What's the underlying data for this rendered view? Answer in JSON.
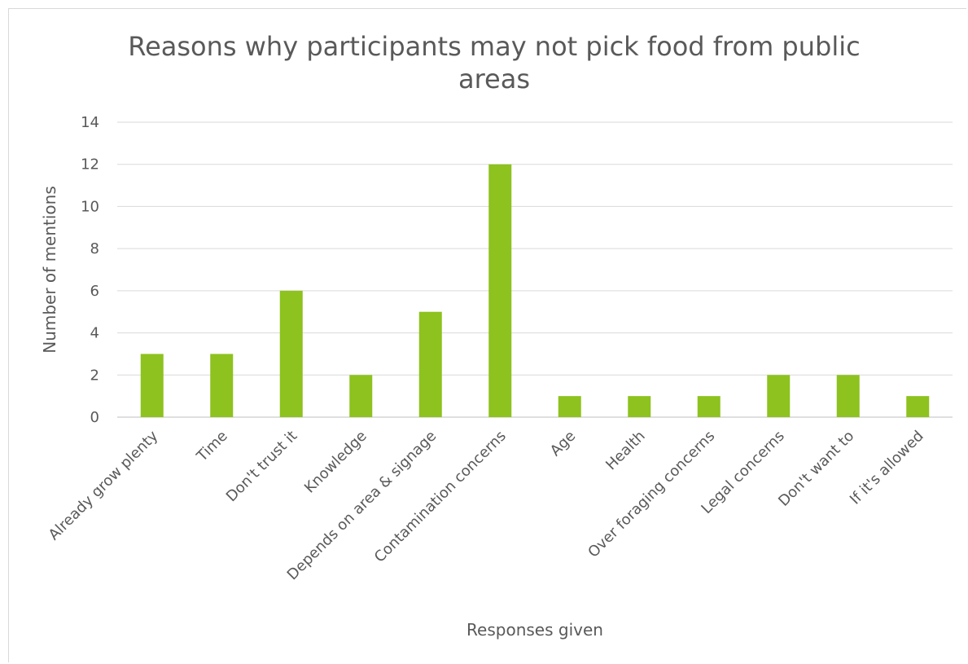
{
  "chart_data": {
    "type": "bar",
    "title_line1": "Reasons why participants may not pick food from public",
    "title_line2": "areas",
    "xlabel": "Responses given",
    "ylabel": "Number of mentions",
    "ylim": [
      0,
      14
    ],
    "yticks": [
      0,
      2,
      4,
      6,
      8,
      10,
      12,
      14
    ],
    "grid": true,
    "bar_color": "#8DC21F",
    "categories": [
      "Already grow plenty",
      "Time",
      "Don't trust it",
      "Knowledge",
      "Depends on area & signage",
      "Contamination concerns",
      "Age",
      "Health",
      "Over foraging concerns",
      "Legal concerns",
      "Don't want to",
      "If it's allowed"
    ],
    "values": [
      3,
      3,
      6,
      2,
      5,
      12,
      1,
      1,
      1,
      2,
      2,
      1
    ]
  }
}
